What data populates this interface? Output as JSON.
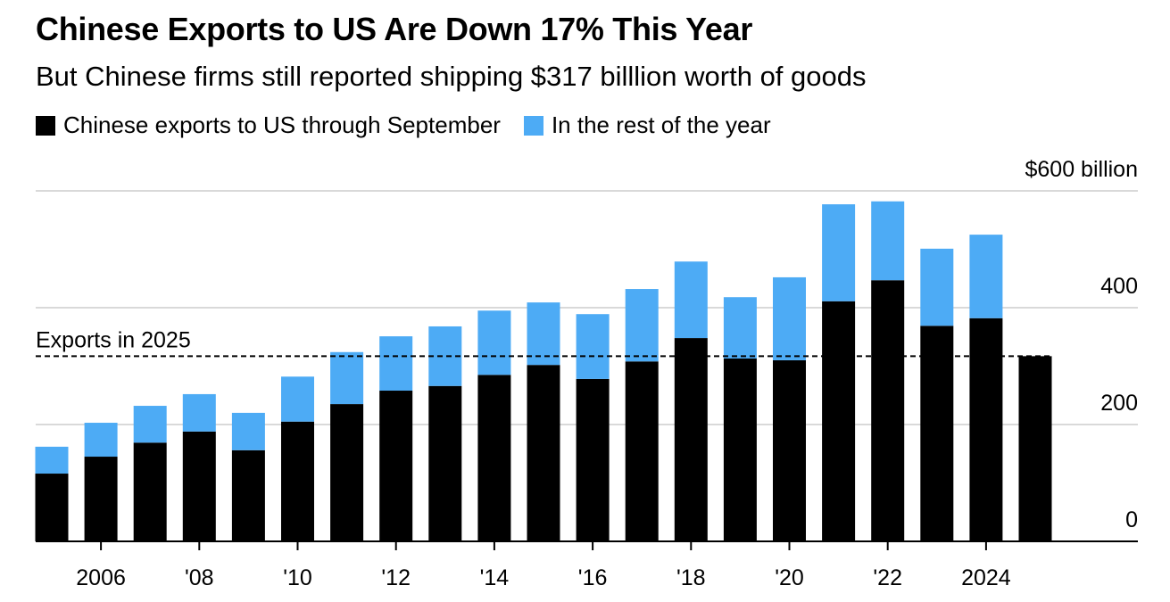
{
  "title": "Chinese Exports to US Are Down 17% This Year",
  "subtitle": "But Chinese firms still reported shipping $317 billlion worth of goods",
  "chart_data": {
    "type": "bar",
    "stacked": true,
    "categories": [
      2005,
      2006,
      2007,
      2008,
      2009,
      2010,
      2011,
      2012,
      2013,
      2014,
      2015,
      2016,
      2017,
      2018,
      2019,
      2020,
      2021,
      2022,
      2023,
      2024,
      2025
    ],
    "series": [
      {
        "name": "Chinese exports to US through September",
        "color": "#000000",
        "values": [
          116,
          145,
          169,
          188,
          156,
          205,
          235,
          258,
          266,
          285,
          302,
          278,
          308,
          348,
          313,
          310,
          411,
          447,
          369,
          382,
          317
        ]
      },
      {
        "name": "In the rest of the year",
        "color": "#4dabf5",
        "values": [
          46,
          58,
          63,
          64,
          64,
          77,
          89,
          93,
          102,
          110,
          107,
          111,
          124,
          131,
          105,
          142,
          166,
          135,
          132,
          143,
          0
        ]
      }
    ],
    "ylim": [
      0,
      600
    ],
    "yticks": [
      0,
      200,
      400,
      600
    ],
    "ytick_labels": [
      "0",
      "200",
      "400",
      "$600 billion"
    ],
    "xticks": [
      2006,
      2008,
      2010,
      2012,
      2014,
      2016,
      2018,
      2020,
      2022,
      2024
    ],
    "xtick_labels": [
      "2006",
      "'08",
      "'10",
      "'12",
      "'14",
      "'16",
      "'18",
      "'20",
      "'22",
      "2024"
    ],
    "reference_line": {
      "value": 317,
      "label": "Exports in 2025",
      "style": "dashed"
    },
    "grid": true,
    "legend_position": "top-left",
    "y_axis_side": "right"
  }
}
